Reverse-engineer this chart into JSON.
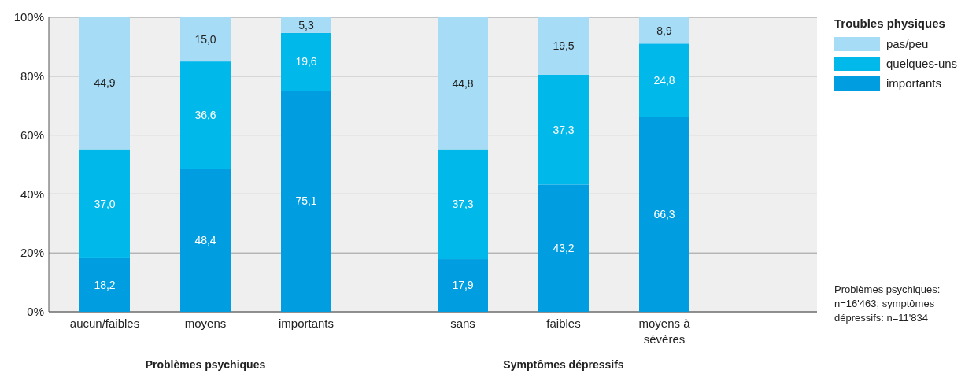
{
  "chart_data": [
    {
      "type": "bar",
      "stacked": true,
      "xlabel": "Problèmes psychiques",
      "categories": [
        "aucun/faibles",
        "moyens",
        "importants"
      ],
      "ylim": [
        0,
        100
      ],
      "yticks": [
        {
          "value": 0,
          "label": "0%"
        },
        {
          "value": 20,
          "label": "20%"
        },
        {
          "value": 40,
          "label": "40%"
        },
        {
          "value": 60,
          "label": "60%"
        },
        {
          "value": 80,
          "label": "80%"
        },
        {
          "value": 100,
          "label": "100%"
        }
      ],
      "grid": "y",
      "legend": false,
      "series": [
        {
          "color": "#009ee0",
          "values": [
            18.2,
            48.4,
            75.1
          ],
          "value_labels": [
            "18,2",
            "48,4",
            "75,1"
          ]
        },
        {
          "color": "#00b8ea",
          "values": [
            37.0,
            36.6,
            19.6
          ],
          "value_labels": [
            "37,0",
            "36,6",
            "19,6"
          ]
        },
        {
          "color": "#a6dcf6",
          "values": [
            44.9,
            15.0,
            5.3
          ],
          "value_labels": [
            "44,9",
            "15,0",
            "5,3"
          ]
        }
      ]
    },
    {
      "type": "bar",
      "stacked": true,
      "xlabel": "Symptômes dépressifs",
      "categories": [
        "sans",
        "faibles",
        "moyens à sévères"
      ],
      "ylim": [
        0,
        100
      ],
      "yticks": [
        {
          "value": 0,
          "label": null
        },
        {
          "value": 20,
          "label": null
        },
        {
          "value": 40,
          "label": null
        },
        {
          "value": 60,
          "label": null
        },
        {
          "value": 80,
          "label": null
        },
        {
          "value": 100,
          "label": null
        }
      ],
      "grid": "y",
      "tick_labels": "x",
      "legend": "right",
      "legend_title": "Troubles physiques",
      "annotations": [
        "Problèmes psychiques: n=16'463; symptômes dépressifs: n=11'834"
      ],
      "series": [
        {
          "name": "importants",
          "color": "#009ee0",
          "values": [
            17.9,
            43.2,
            66.3
          ],
          "value_labels": [
            "17,9",
            "43,2",
            "66,3"
          ]
        },
        {
          "name": "quelques-uns",
          "color": "#00b8ea",
          "values": [
            37.3,
            37.3,
            24.8
          ],
          "value_labels": [
            "37,3",
            "37,3",
            "24,8"
          ]
        },
        {
          "name": "pas/peu",
          "color": "#a6dcf6",
          "values": [
            44.8,
            19.5,
            8.9
          ],
          "value_labels": [
            "44,8",
            "19,5",
            "8,9"
          ]
        }
      ]
    }
  ]
}
